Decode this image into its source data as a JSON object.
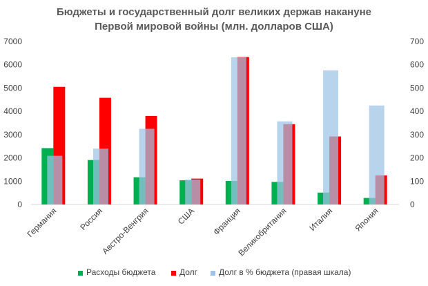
{
  "chart_data": {
    "type": "bar",
    "title_lines": [
      "Бюджеты и государственный долг великих держав накануне",
      "Первой мировой войны (млн. долларов США)"
    ],
    "categories": [
      "Германия",
      "Россия",
      "Австро-Венгрия",
      "США",
      "Франция",
      "Великобритания",
      "Италия",
      "Япония"
    ],
    "series": [
      {
        "name": "Расходы бюджета",
        "axis": "left",
        "color": "#00b050",
        "values": [
          2420,
          1910,
          1170,
          1040,
          1010,
          970,
          510,
          280
        ]
      },
      {
        "name": "Долг",
        "axis": "left",
        "color": "#ff0000",
        "values": [
          5050,
          4580,
          3800,
          1110,
          6330,
          3450,
          2920,
          1250
        ]
      },
      {
        "name": "Долг в % бюджета (правая шкала)",
        "axis": "right",
        "color": "#9dc3e6",
        "values": [
          209,
          240,
          325,
          107,
          632,
          357,
          576,
          425
        ]
      }
    ],
    "left_axis": {
      "min": 0,
      "max": 7000,
      "ticks": [
        "0",
        "1000",
        "2000",
        "3000",
        "4000",
        "5000",
        "6000",
        "7000"
      ]
    },
    "right_axis": {
      "min": 0,
      "max": 700,
      "ticks": [
        "0",
        "100",
        "200",
        "300",
        "400",
        "500",
        "600",
        "700"
      ]
    },
    "legend_position": "bottom",
    "grid": false
  }
}
